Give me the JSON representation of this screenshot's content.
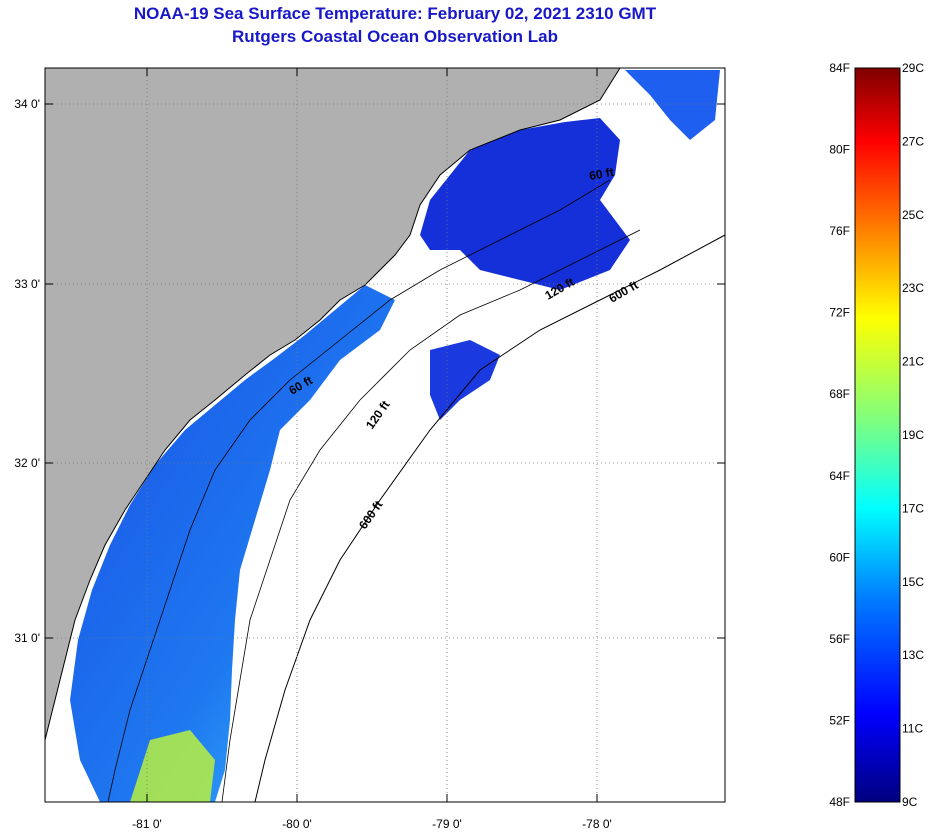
{
  "header": {
    "title": "NOAA-19 Sea Surface Temperature:  February 02, 2021 2310 GMT",
    "subtitle": "Rutgers Coastal Ocean Observation Lab"
  },
  "map": {
    "lat_labels": [
      "34 0'",
      "33 0'",
      "32 0'",
      "31 0'"
    ],
    "lon_labels": [
      "-81 0'",
      "-80 0'",
      "-79 0'",
      "-78 0'"
    ],
    "isobath_labels": [
      "60 ft",
      "120 ft",
      "600 ft",
      "60 ft",
      "120 ft",
      "600 ft"
    ],
    "colors": {
      "land": "#b0b0b0",
      "cloud": "#ffffff",
      "coast": "#000000"
    }
  },
  "colorbar": {
    "fahrenheit_labels": [
      "84F",
      "80F",
      "76F",
      "72F",
      "68F",
      "64F",
      "60F",
      "56F",
      "52F",
      "48F"
    ],
    "celsius_labels": [
      "29C",
      "27C",
      "25C",
      "23C",
      "21C",
      "19C",
      "17C",
      "15C",
      "13C",
      "11C",
      "9C"
    ],
    "colors": [
      "#00007f",
      "#0000ff",
      "#007fff",
      "#00ffff",
      "#7fff7f",
      "#ffff00",
      "#ff7f00",
      "#ff0000",
      "#7f0000"
    ]
  }
}
